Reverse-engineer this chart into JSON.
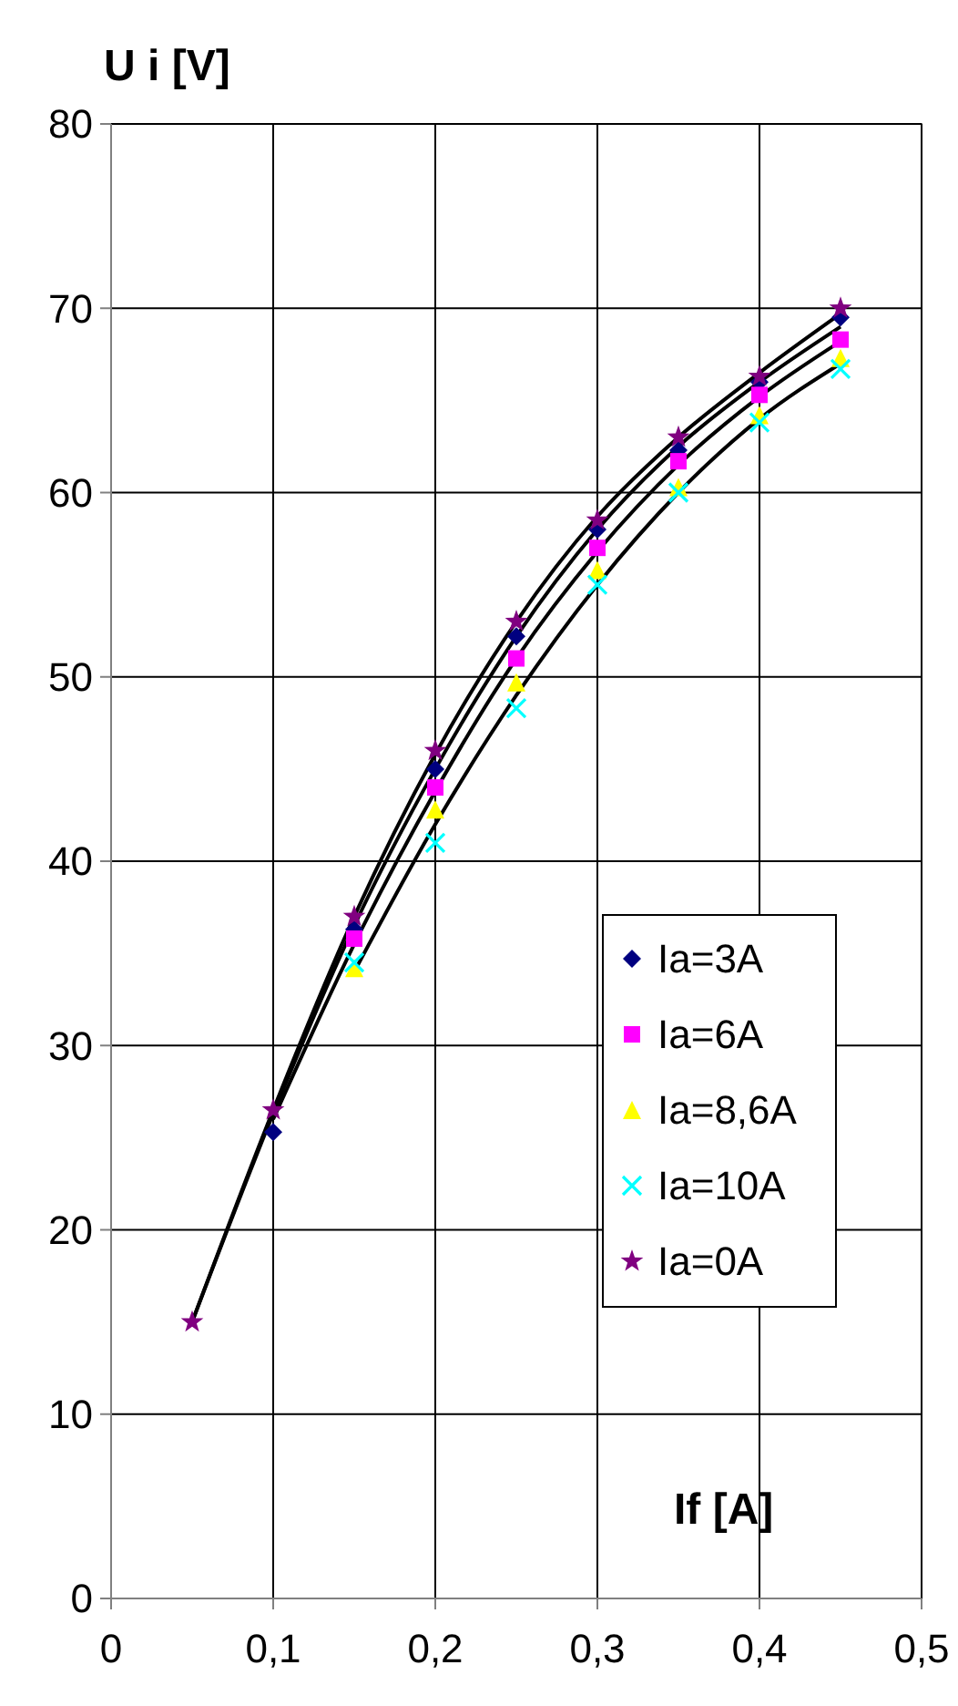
{
  "chart_data": {
    "type": "scatter",
    "xlabel": "If  [A]",
    "ylabel": "U i  [V]",
    "xlim": [
      0,
      0.5
    ],
    "ylim": [
      0,
      80
    ],
    "xticks": [
      0,
      {
        "value": 0.1,
        "label": "0,1"
      },
      {
        "value": 0.2,
        "label": "0,2"
      },
      {
        "value": 0.3,
        "label": "0,3"
      },
      {
        "value": 0.4,
        "label": "0,4"
      },
      {
        "value": 0.5,
        "label": "0,5"
      }
    ],
    "yticks": [
      0,
      10,
      20,
      30,
      40,
      50,
      60,
      70,
      80
    ],
    "grid": true,
    "legend": "right",
    "series": [
      {
        "type": "line",
        "color": "#000000",
        "marker": "none",
        "x": [
          0.05,
          0.1,
          0.15,
          0.2,
          0.25,
          0.3,
          0.35,
          0.4,
          0.45
        ],
        "values": [
          15,
          26.5,
          37,
          45.8,
          53,
          58.7,
          63,
          66.5,
          69.7
        ]
      },
      {
        "type": "line",
        "color": "#000000",
        "marker": "none",
        "x": [
          0.05,
          0.1,
          0.15,
          0.2,
          0.25,
          0.3,
          0.35,
          0.4,
          0.45
        ],
        "values": [
          15,
          26.3,
          36.5,
          45,
          52.2,
          58,
          62.5,
          66,
          69
        ]
      },
      {
        "type": "line",
        "color": "#000000",
        "marker": "none",
        "x": [
          0.1,
          0.15,
          0.2,
          0.25,
          0.3,
          0.35,
          0.4,
          0.45
        ],
        "values": [
          26,
          35.5,
          43.8,
          51,
          56.8,
          61.5,
          65.2,
          68.2
        ]
      },
      {
        "type": "line",
        "color": "#000000",
        "marker": "none",
        "x": [
          0.15,
          0.2,
          0.25,
          0.3,
          0.35,
          0.4,
          0.45
        ],
        "values": [
          34,
          42,
          49,
          55,
          60,
          64,
          67
        ]
      },
      {
        "name": "Ia=3A",
        "color": "#000080",
        "marker": "diamond",
        "x": [
          0.1,
          0.15,
          0.2,
          0.25,
          0.3,
          0.35,
          0.4,
          0.45
        ],
        "values": [
          25.3,
          36.3,
          45,
          52.2,
          58,
          62.3,
          66,
          69.5
        ]
      },
      {
        "name": "Ia=6A",
        "color": "#ff00ff",
        "marker": "square",
        "x": [
          0.15,
          0.2,
          0.25,
          0.3,
          0.35,
          0.4,
          0.45
        ],
        "values": [
          35.8,
          44,
          51,
          57,
          61.7,
          65.3,
          68.3
        ]
      },
      {
        "name": "Ia=8,6A",
        "color": "#ffff00",
        "marker": "triangle",
        "x": [
          0.15,
          0.2,
          0.25,
          0.3,
          0.35,
          0.4,
          0.45
        ],
        "values": [
          34.2,
          42.8,
          49.7,
          55.8,
          60.3,
          64.2,
          67.3
        ]
      },
      {
        "name": "Ia=10A",
        "color": "#00ffff",
        "marker": "cross",
        "x": [
          0.15,
          0.2,
          0.25,
          0.3,
          0.35,
          0.4,
          0.45
        ],
        "values": [
          34.5,
          41,
          48.3,
          55,
          60,
          63.8,
          66.7
        ]
      },
      {
        "name": "Ia=0A",
        "color": "#800080",
        "marker": "star",
        "x": [
          0.05,
          0.1,
          0.15,
          0.2,
          0.25,
          0.3,
          0.35,
          0.4,
          0.45
        ],
        "values": [
          15,
          26.5,
          37,
          46,
          53,
          58.5,
          63,
          66.3,
          70
        ]
      }
    ]
  }
}
